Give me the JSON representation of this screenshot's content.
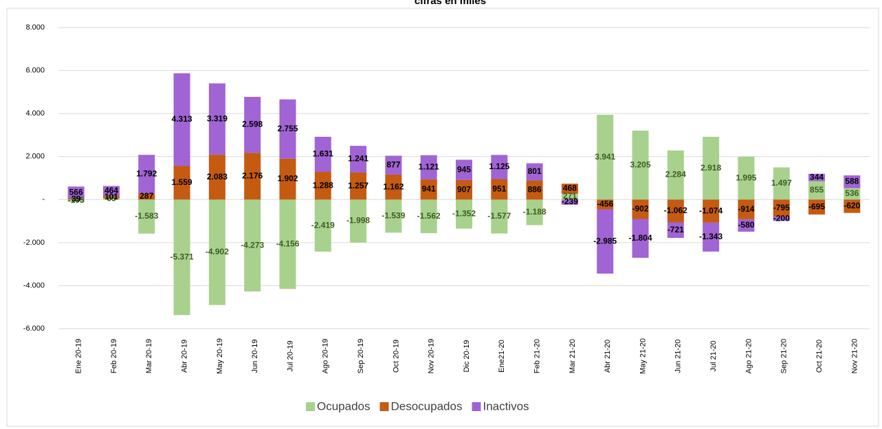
{
  "chart_data": {
    "type": "stacked_bar",
    "title": "cifras en miles",
    "categories": [
      "Ene 20-19",
      "Feb 20-19",
      "Mar 20-19",
      "Abr 20-19",
      "May 20-19",
      "Jun 20-19",
      "Jul 20-19",
      "Ago 20-19",
      "Sep 20-19",
      "Oct 20-19",
      "Nov 20-19",
      "Dic 20-19",
      "Ene21-20",
      "Feb 21-20",
      "Mar 21-20",
      "Abr 21-20",
      "May 21-20",
      "Jun 21-20",
      "Jul 21-20",
      "Ago 21-20",
      "Sep 21-20",
      "Oct 21-20",
      "Nov 21-20"
    ],
    "series": [
      {
        "name": "Ocupados",
        "color": "#a9d18e",
        "label_color": "#3b5e22",
        "values": [
          -105,
          65,
          -1583,
          -5371,
          -4902,
          -4273,
          -4156,
          -2419,
          -1998,
          -1539,
          -1562,
          -1352,
          -1577,
          -1188,
          271,
          3941,
          3205,
          2284,
          2918,
          1995,
          1497,
          855,
          536
        ],
        "value_labels": [
          "-105",
          "65",
          "-1.583",
          "-5.371",
          "-4.902",
          "-4.273",
          "-4.156",
          "-2.419",
          "-1.998",
          "-1.539",
          "-1.562",
          "-1.352",
          "-1.577",
          "-1.188",
          "271",
          "3.941",
          "3.205",
          "2.284",
          "2.918",
          "1.995",
          "1.497",
          "855",
          "536"
        ]
      },
      {
        "name": "Desocupados",
        "color": "#c55a11",
        "label_color": "#000000",
        "values": [
          39,
          101,
          287,
          1559,
          2083,
          2176,
          1902,
          1288,
          1257,
          1162,
          941,
          907,
          951,
          886,
          468,
          -456,
          -902,
          -1062,
          -1074,
          -914,
          -795,
          -695,
          -620
        ],
        "value_labels": [
          "39",
          "101",
          "287",
          "1.559",
          "2.083",
          "2.176",
          "1.902",
          "1.288",
          "1.257",
          "1.162",
          "941",
          "907",
          "951",
          "886",
          "468",
          "-456",
          "-902",
          "-1.062",
          "-1.074",
          "-914",
          "-795",
          "-695",
          "-620"
        ]
      },
      {
        "name": "Inactivos",
        "color": "#a064d4",
        "label_color": "#000000",
        "values": [
          566,
          464,
          1792,
          4313,
          3319,
          2598,
          2755,
          1631,
          1241,
          877,
          1121,
          945,
          1125,
          801,
          -239,
          -2985,
          -1804,
          -721,
          -1343,
          -580,
          -200,
          344,
          588
        ],
        "value_labels": [
          "566",
          "464",
          "1.792",
          "4.313",
          "3.319",
          "2.598",
          "2.755",
          "1.631",
          "1.241",
          "877",
          "1.121",
          "945",
          "1.125",
          "801",
          "-239",
          "-2.985",
          "-1.804",
          "-721",
          "-1.343",
          "-580",
          "-200",
          "344",
          "588"
        ]
      }
    ],
    "ylim": [
      -6000,
      8000
    ],
    "yticks": [
      {
        "value": -6000,
        "label": "-6.000"
      },
      {
        "value": -4000,
        "label": "-4.000"
      },
      {
        "value": -2000,
        "label": "-2.000"
      },
      {
        "value": 0,
        "label": "-"
      },
      {
        "value": 2000,
        "label": "2.000"
      },
      {
        "value": 4000,
        "label": "4.000"
      },
      {
        "value": 6000,
        "label": "6.000"
      },
      {
        "value": 8000,
        "label": "8.000"
      }
    ],
    "grid": true,
    "legend": "bottom"
  }
}
